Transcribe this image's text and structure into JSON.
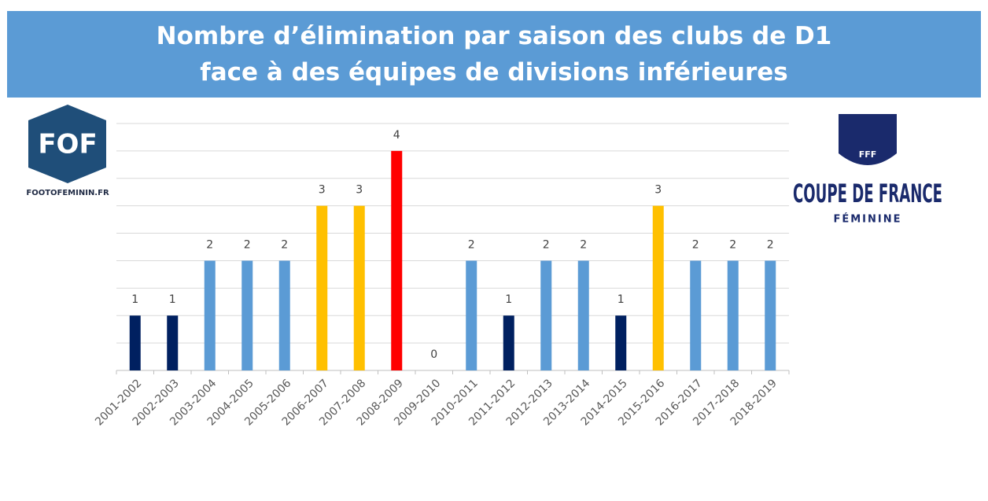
{
  "chart_data": {
    "type": "bar",
    "title": "Nombre d’élimination par saison des clubs de D1\nface à des équipes de divisions inférieures",
    "categories": [
      "2001-2002",
      "2002-2003",
      "2003-2004",
      "2004-2005",
      "2005-2006",
      "2006-2007",
      "2007-2008",
      "2008-2009",
      "2009-2010",
      "2010-2011",
      "2011-2012",
      "2012-2013",
      "2013-2014",
      "2014-2015",
      "2015-2016",
      "2016-2017",
      "2017-2018",
      "2018-2019"
    ],
    "values": [
      1,
      1,
      2,
      2,
      2,
      3,
      3,
      4,
      0,
      2,
      1,
      2,
      2,
      1,
      3,
      2,
      2,
      2
    ],
    "colors": [
      "#002060",
      "#002060",
      "#5b9bd5",
      "#5b9bd5",
      "#5b9bd5",
      "#ffc000",
      "#ffc000",
      "#ff0000",
      "#5b9bd5",
      "#5b9bd5",
      "#002060",
      "#5b9bd5",
      "#5b9bd5",
      "#002060",
      "#ffc000",
      "#5b9bd5",
      "#5b9bd5",
      "#5b9bd5"
    ],
    "ylim": [
      0,
      4.5
    ],
    "yticks": [
      0,
      0.5,
      1,
      1.5,
      2,
      2.5,
      3,
      3.5,
      4,
      4.5
    ],
    "grid": true
  },
  "logos": {
    "fof": "FOF",
    "fof_site": "FOOTOFEMININ.FR",
    "fff": "FFF",
    "coupe": "COUPE DE FRANCE",
    "feminine": "FÉMININE"
  }
}
